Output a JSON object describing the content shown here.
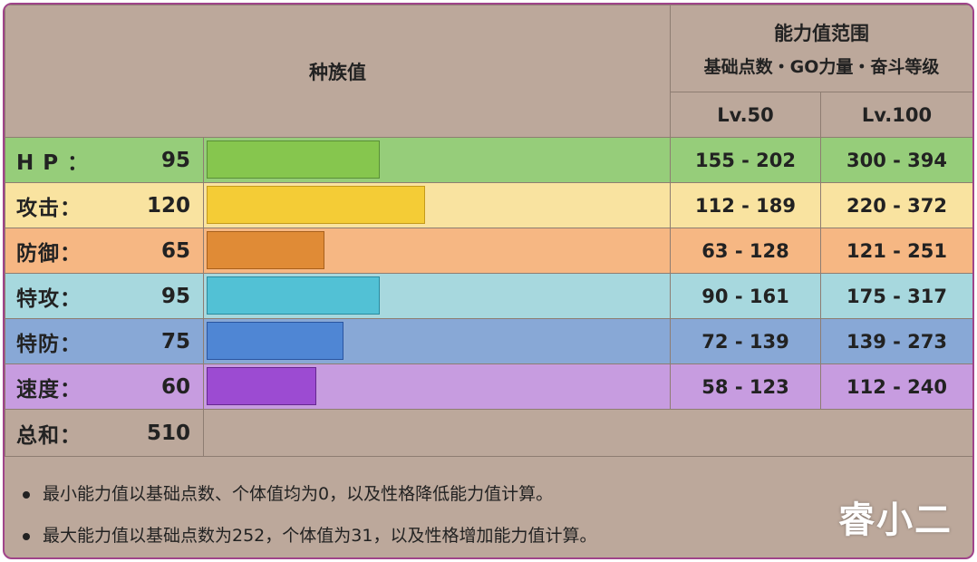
{
  "header": {
    "base_stats_title": "种族值",
    "range_title": "能力值范围",
    "range_subtitle": "基础点数・GO力量・奋斗等级",
    "lv50": "Lv.50",
    "lv100": "Lv.100"
  },
  "stats": [
    {
      "label": "H P ：",
      "value": "95",
      "bar_pct": 0.375,
      "lv50": "155 - 202",
      "lv100": "300 - 394",
      "row_color": "#96cd7a",
      "bar_color": "#86c64e",
      "bar_border": "#5a8f36"
    },
    {
      "label": "攻击：",
      "value": "120",
      "bar_pct": 0.473,
      "lv50": "112 - 189",
      "lv100": "220 - 372",
      "row_color": "#f9e3a0",
      "bar_color": "#f4cc36",
      "bar_border": "#c49a1a"
    },
    {
      "label": "防御：",
      "value": "65",
      "bar_pct": 0.256,
      "lv50": "63 - 128",
      "lv100": "121 - 251",
      "row_color": "#f6b783",
      "bar_color": "#e08b36",
      "bar_border": "#a8601c"
    },
    {
      "label": "特攻：",
      "value": "95",
      "bar_pct": 0.375,
      "lv50": "90 - 161",
      "lv100": "175 - 317",
      "row_color": "#a7d8de",
      "bar_color": "#52c1d5",
      "bar_border": "#2a8a9e"
    },
    {
      "label": "特防：",
      "value": "75",
      "bar_pct": 0.296,
      "lv50": "72 - 139",
      "lv100": "139 - 273",
      "row_color": "#88a8d6",
      "bar_color": "#4f86d4",
      "bar_border": "#2a55a0"
    },
    {
      "label": "速度：",
      "value": "60",
      "bar_pct": 0.237,
      "lv50": "58 - 123",
      "lv100": "112 - 240",
      "row_color": "#c79ce0",
      "bar_color": "#9c4bd2",
      "bar_border": "#65278f"
    }
  ],
  "total": {
    "label": "总和：",
    "value": "510"
  },
  "notes": [
    "最小能力值以基础点数、个体值均为0，以及性格降低能力值计算。",
    "最大能力值以基础点数为252，个体值为31，以及性格增加能力值计算。"
  ],
  "watermark": "睿小二"
}
